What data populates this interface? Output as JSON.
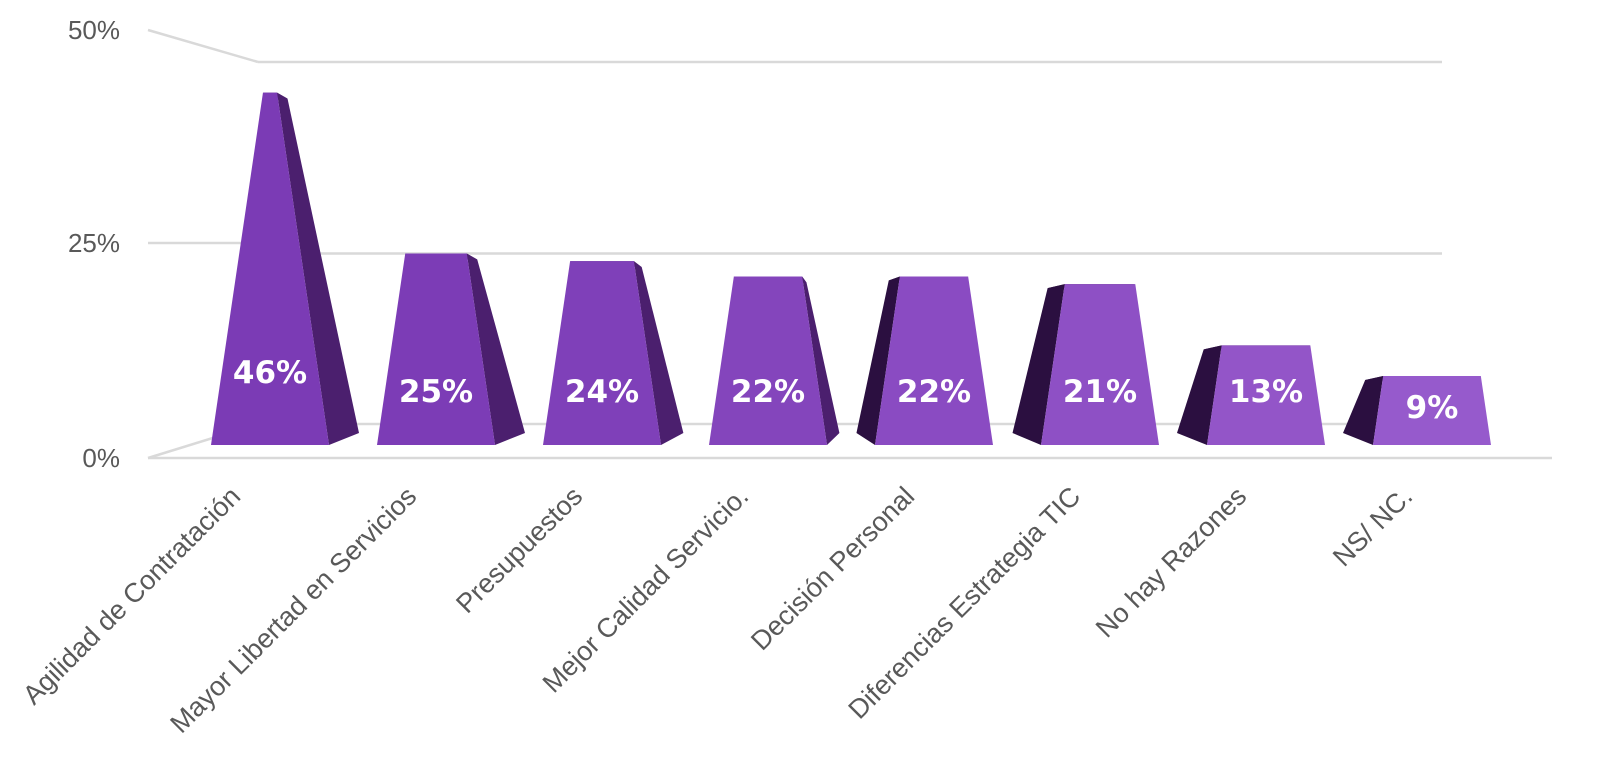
{
  "chart_data": {
    "type": "bar",
    "categories": [
      "Agilidad de Contratación",
      "Mayor Libertad en Servicios",
      "Presupuestos",
      "Mejor Calidad Servicio.",
      "Decisión Personal",
      "Diferencias Estrategia TIC",
      "No hay Razones",
      "NS/ NC."
    ],
    "values": [
      46,
      25,
      24,
      22,
      22,
      21,
      13,
      9
    ],
    "data_labels": [
      "46%",
      "25%",
      "24%",
      "22%",
      "22%",
      "21%",
      "13%",
      "9%"
    ],
    "y_ticks": [
      "0%",
      "25%",
      "50%"
    ],
    "ylim": [
      0,
      50
    ],
    "grid": true,
    "legend": "none",
    "colors": {
      "front": [
        "#7b3bb5",
        "#7c3cb6",
        "#7f40b9",
        "#8445bc",
        "#8a4bc2",
        "#8e50c5",
        "#9355c8",
        "#965acc"
      ],
      "side": "#4b1f6e",
      "side_dark": "#2b0f40",
      "grid": "#d9d9d9",
      "text": "#595959"
    }
  }
}
